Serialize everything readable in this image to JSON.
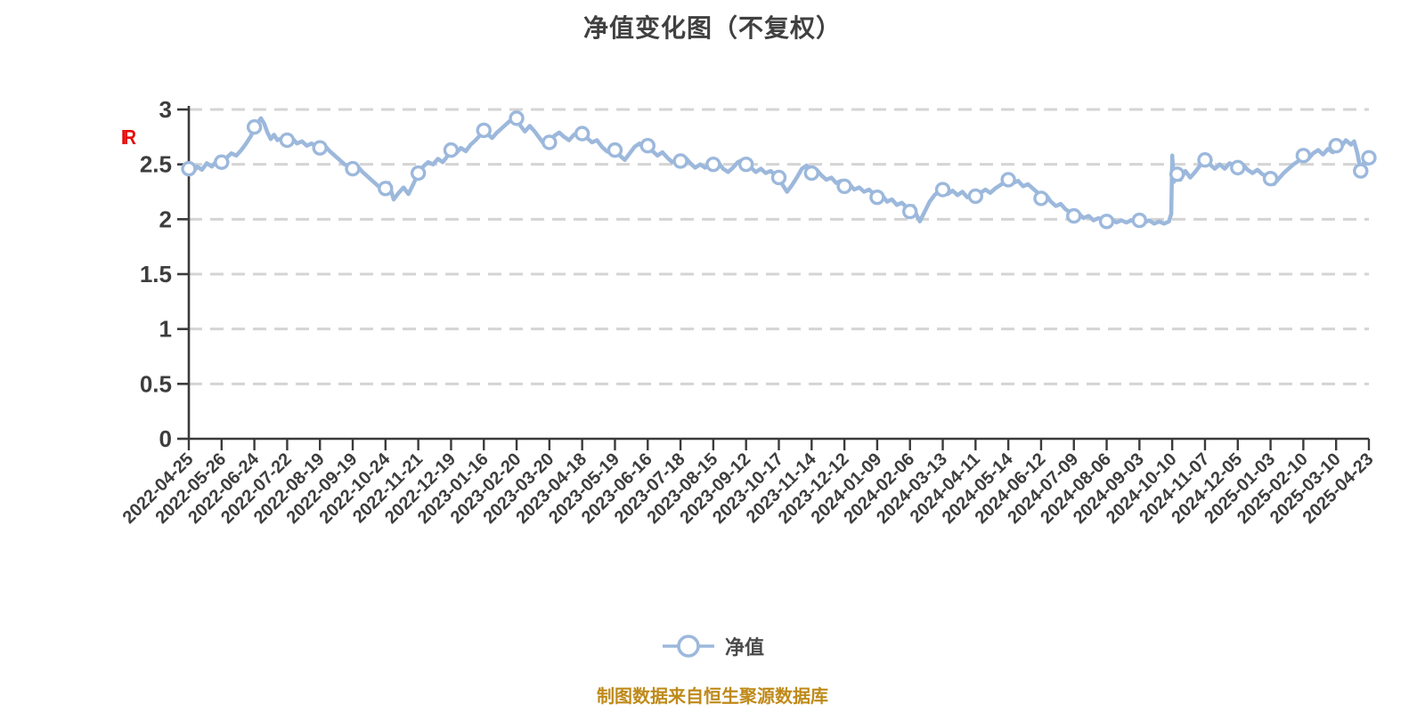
{
  "title": "净值变化图（不复权）",
  "y_axis_unit_label": "IR",
  "legend": {
    "series_label": "净值"
  },
  "footer": {
    "source_text": "制图数据来自恒生聚源数据库"
  },
  "colors": {
    "line": "#9cb8dc",
    "marker_fill": "#ffffff",
    "marker_stroke": "#9cb8dc",
    "grid": "#d4d4d4",
    "axis": "#3a3a3a",
    "title_text": "#404040",
    "tick_text": "#3d3d3d",
    "unit_label_text": "#e60d0d",
    "legend_text": "#4a4a4a",
    "footer_text": "#bf8a1a"
  },
  "chart_data": {
    "type": "line",
    "title": "净值变化图（不复权）",
    "series_name": "净值",
    "ylim": [
      0,
      3
    ],
    "y_ticks": [
      0,
      0.5,
      1,
      1.5,
      2,
      2.5,
      3
    ],
    "grid": "horizontal dashed",
    "legend_position": "bottom center",
    "x_labels": [
      "2022-04-25",
      "2022-05-26",
      "2022-06-24",
      "2022-07-22",
      "2022-08-19",
      "2022-09-19",
      "2022-10-24",
      "2022-11-21",
      "2022-12-19",
      "2023-01-16",
      "2023-02-20",
      "2023-03-20",
      "2023-04-18",
      "2023-05-19",
      "2023-06-16",
      "2023-07-18",
      "2023-08-15",
      "2023-09-12",
      "2023-10-17",
      "2023-11-14",
      "2023-12-12",
      "2024-01-09",
      "2024-02-06",
      "2024-03-13",
      "2024-04-11",
      "2024-05-14",
      "2024-06-12",
      "2024-07-09",
      "2024-08-06",
      "2024-09-03",
      "2024-10-10",
      "2024-11-07",
      "2024-12-05",
      "2025-01-03",
      "2025-02-10",
      "2025-03-10",
      "2025-04-23"
    ],
    "values_at_labels": [
      2.46,
      2.52,
      2.84,
      2.72,
      2.65,
      2.46,
      2.28,
      2.42,
      2.63,
      2.81,
      2.92,
      2.7,
      2.78,
      2.63,
      2.67,
      2.53,
      2.5,
      2.5,
      2.38,
      2.42,
      2.3,
      2.2,
      2.07,
      2.27,
      2.21,
      2.36,
      2.19,
      2.03,
      1.98,
      1.99,
      2.41,
      2.54,
      2.47,
      2.37,
      2.58,
      2.67,
      2.56
    ],
    "marker_points": [
      [
        0,
        2.46
      ],
      [
        1,
        2.52
      ],
      [
        2,
        2.84
      ],
      [
        3,
        2.72
      ],
      [
        4,
        2.65
      ],
      [
        5,
        2.46
      ],
      [
        6,
        2.28
      ],
      [
        7,
        2.42
      ],
      [
        8,
        2.63
      ],
      [
        9,
        2.81
      ],
      [
        10,
        2.92
      ],
      [
        11,
        2.7
      ],
      [
        12,
        2.78
      ],
      [
        13,
        2.63
      ],
      [
        14,
        2.67
      ],
      [
        15,
        2.53
      ],
      [
        16,
        2.5
      ],
      [
        17,
        2.5
      ],
      [
        18,
        2.38
      ],
      [
        19,
        2.42
      ],
      [
        20,
        2.3
      ],
      [
        21,
        2.2
      ],
      [
        22,
        2.07
      ],
      [
        23,
        2.27
      ],
      [
        24,
        2.21
      ],
      [
        25,
        2.36
      ],
      [
        26,
        2.19
      ],
      [
        27,
        2.03
      ],
      [
        28,
        1.98
      ],
      [
        29,
        1.99
      ],
      [
        30.15,
        2.41
      ],
      [
        31,
        2.54
      ],
      [
        32,
        2.47
      ],
      [
        33,
        2.37
      ],
      [
        34,
        2.58
      ],
      [
        35,
        2.67
      ],
      [
        35.75,
        2.44
      ],
      [
        36,
        2.56
      ]
    ],
    "line_points": [
      [
        0,
        2.46
      ],
      [
        0.12,
        2.42
      ],
      [
        0.25,
        2.48
      ],
      [
        0.4,
        2.45
      ],
      [
        0.55,
        2.51
      ],
      [
        0.7,
        2.48
      ],
      [
        0.85,
        2.53
      ],
      [
        1,
        2.52
      ],
      [
        1.15,
        2.56
      ],
      [
        1.3,
        2.6
      ],
      [
        1.45,
        2.58
      ],
      [
        1.6,
        2.63
      ],
      [
        1.75,
        2.69
      ],
      [
        1.9,
        2.76
      ],
      [
        2,
        2.84
      ],
      [
        2.1,
        2.88
      ],
      [
        2.2,
        2.92
      ],
      [
        2.3,
        2.87
      ],
      [
        2.4,
        2.79
      ],
      [
        2.5,
        2.73
      ],
      [
        2.6,
        2.77
      ],
      [
        2.7,
        2.72
      ],
      [
        2.85,
        2.74
      ],
      [
        3,
        2.72
      ],
      [
        3.15,
        2.74
      ],
      [
        3.3,
        2.69
      ],
      [
        3.45,
        2.71
      ],
      [
        3.6,
        2.67
      ],
      [
        3.75,
        2.69
      ],
      [
        3.9,
        2.66
      ],
      [
        4,
        2.65
      ],
      [
        4.15,
        2.67
      ],
      [
        4.3,
        2.62
      ],
      [
        4.45,
        2.58
      ],
      [
        4.6,
        2.54
      ],
      [
        4.75,
        2.5
      ],
      [
        4.9,
        2.48
      ],
      [
        5,
        2.46
      ],
      [
        5.15,
        2.48
      ],
      [
        5.3,
        2.43
      ],
      [
        5.45,
        2.39
      ],
      [
        5.6,
        2.35
      ],
      [
        5.75,
        2.31
      ],
      [
        5.9,
        2.27
      ],
      [
        6,
        2.28
      ],
      [
        6.1,
        2.33
      ],
      [
        6.25,
        2.18
      ],
      [
        6.4,
        2.24
      ],
      [
        6.55,
        2.29
      ],
      [
        6.7,
        2.23
      ],
      [
        6.85,
        2.32
      ],
      [
        7,
        2.42
      ],
      [
        7.15,
        2.48
      ],
      [
        7.3,
        2.52
      ],
      [
        7.45,
        2.5
      ],
      [
        7.6,
        2.55
      ],
      [
        7.75,
        2.52
      ],
      [
        7.9,
        2.58
      ],
      [
        8,
        2.63
      ],
      [
        8.15,
        2.6
      ],
      [
        8.3,
        2.65
      ],
      [
        8.45,
        2.62
      ],
      [
        8.6,
        2.68
      ],
      [
        8.75,
        2.72
      ],
      [
        8.9,
        2.77
      ],
      [
        9,
        2.81
      ],
      [
        9.1,
        2.78
      ],
      [
        9.25,
        2.74
      ],
      [
        9.4,
        2.79
      ],
      [
        9.55,
        2.83
      ],
      [
        9.7,
        2.87
      ],
      [
        9.85,
        2.91
      ],
      [
        10,
        2.92
      ],
      [
        10.1,
        2.86
      ],
      [
        10.25,
        2.8
      ],
      [
        10.4,
        2.85
      ],
      [
        10.55,
        2.8
      ],
      [
        10.7,
        2.74
      ],
      [
        10.85,
        2.68
      ],
      [
        11,
        2.7
      ],
      [
        11.15,
        2.76
      ],
      [
        11.3,
        2.79
      ],
      [
        11.45,
        2.75
      ],
      [
        11.6,
        2.72
      ],
      [
        11.75,
        2.77
      ],
      [
        11.9,
        2.8
      ],
      [
        12,
        2.78
      ],
      [
        12.15,
        2.74
      ],
      [
        12.3,
        2.7
      ],
      [
        12.45,
        2.72
      ],
      [
        12.6,
        2.66
      ],
      [
        12.75,
        2.62
      ],
      [
        12.9,
        2.6
      ],
      [
        13,
        2.63
      ],
      [
        13.15,
        2.58
      ],
      [
        13.3,
        2.54
      ],
      [
        13.45,
        2.6
      ],
      [
        13.6,
        2.66
      ],
      [
        13.75,
        2.69
      ],
      [
        13.9,
        2.64
      ],
      [
        14,
        2.67
      ],
      [
        14.15,
        2.62
      ],
      [
        14.3,
        2.58
      ],
      [
        14.45,
        2.61
      ],
      [
        14.6,
        2.56
      ],
      [
        14.75,
        2.52
      ],
      [
        14.9,
        2.55
      ],
      [
        15,
        2.53
      ],
      [
        15.15,
        2.56
      ],
      [
        15.3,
        2.51
      ],
      [
        15.45,
        2.47
      ],
      [
        15.6,
        2.5
      ],
      [
        15.75,
        2.47
      ],
      [
        15.9,
        2.51
      ],
      [
        16,
        2.5
      ],
      [
        16.15,
        2.52
      ],
      [
        16.3,
        2.46
      ],
      [
        16.45,
        2.43
      ],
      [
        16.6,
        2.47
      ],
      [
        16.75,
        2.52
      ],
      [
        16.9,
        2.54
      ],
      [
        17,
        2.5
      ],
      [
        17.15,
        2.47
      ],
      [
        17.3,
        2.43
      ],
      [
        17.45,
        2.46
      ],
      [
        17.6,
        2.42
      ],
      [
        17.75,
        2.44
      ],
      [
        17.9,
        2.4
      ],
      [
        18,
        2.38
      ],
      [
        18.1,
        2.32
      ],
      [
        18.25,
        2.25
      ],
      [
        18.4,
        2.31
      ],
      [
        18.55,
        2.38
      ],
      [
        18.7,
        2.46
      ],
      [
        18.85,
        2.49
      ],
      [
        19,
        2.42
      ],
      [
        19.15,
        2.45
      ],
      [
        19.3,
        2.4
      ],
      [
        19.45,
        2.36
      ],
      [
        19.6,
        2.38
      ],
      [
        19.75,
        2.33
      ],
      [
        19.9,
        2.35
      ],
      [
        20,
        2.3
      ],
      [
        20.15,
        2.32
      ],
      [
        20.3,
        2.27
      ],
      [
        20.45,
        2.29
      ],
      [
        20.6,
        2.25
      ],
      [
        20.75,
        2.27
      ],
      [
        20.9,
        2.23
      ],
      [
        21,
        2.2
      ],
      [
        21.15,
        2.22
      ],
      [
        21.3,
        2.16
      ],
      [
        21.45,
        2.18
      ],
      [
        21.6,
        2.13
      ],
      [
        21.75,
        2.15
      ],
      [
        21.9,
        2.11
      ],
      [
        22,
        2.07
      ],
      [
        22.1,
        2.12
      ],
      [
        22.2,
        2.04
      ],
      [
        22.3,
        1.98
      ],
      [
        22.45,
        2.07
      ],
      [
        22.6,
        2.16
      ],
      [
        22.75,
        2.22
      ],
      [
        22.9,
        2.26
      ],
      [
        23,
        2.27
      ],
      [
        23.15,
        2.23
      ],
      [
        23.3,
        2.26
      ],
      [
        23.45,
        2.22
      ],
      [
        23.6,
        2.25
      ],
      [
        23.75,
        2.2
      ],
      [
        23.9,
        2.23
      ],
      [
        24,
        2.21
      ],
      [
        24.15,
        2.24
      ],
      [
        24.3,
        2.27
      ],
      [
        24.45,
        2.24
      ],
      [
        24.6,
        2.28
      ],
      [
        24.75,
        2.31
      ],
      [
        24.9,
        2.34
      ],
      [
        25,
        2.36
      ],
      [
        25.15,
        2.33
      ],
      [
        25.3,
        2.35
      ],
      [
        25.45,
        2.3
      ],
      [
        25.6,
        2.32
      ],
      [
        25.75,
        2.28
      ],
      [
        25.9,
        2.24
      ],
      [
        26,
        2.19
      ],
      [
        26.15,
        2.22
      ],
      [
        26.3,
        2.16
      ],
      [
        26.45,
        2.12
      ],
      [
        26.6,
        2.14
      ],
      [
        26.75,
        2.09
      ],
      [
        26.9,
        2.06
      ],
      [
        27,
        2.03
      ],
      [
        27.15,
        2.05
      ],
      [
        27.3,
        2.01
      ],
      [
        27.45,
        2.03
      ],
      [
        27.6,
        1.99
      ],
      [
        27.75,
        2.01
      ],
      [
        27.9,
        1.99
      ],
      [
        28,
        1.98
      ],
      [
        28.15,
        2.0
      ],
      [
        28.3,
        1.97
      ],
      [
        28.45,
        1.99
      ],
      [
        28.6,
        1.97
      ],
      [
        28.75,
        1.99
      ],
      [
        28.9,
        1.97
      ],
      [
        29,
        1.99
      ],
      [
        29.15,
        1.97
      ],
      [
        29.3,
        1.99
      ],
      [
        29.45,
        1.96
      ],
      [
        29.6,
        1.98
      ],
      [
        29.75,
        1.96
      ],
      [
        29.9,
        1.98
      ],
      [
        29.97,
        2.05
      ],
      [
        30,
        2.58
      ],
      [
        30.05,
        2.34
      ],
      [
        30.15,
        2.41
      ],
      [
        30.25,
        2.36
      ],
      [
        30.4,
        2.44
      ],
      [
        30.55,
        2.38
      ],
      [
        30.7,
        2.43
      ],
      [
        30.85,
        2.49
      ],
      [
        31,
        2.54
      ],
      [
        31.15,
        2.5
      ],
      [
        31.3,
        2.46
      ],
      [
        31.45,
        2.5
      ],
      [
        31.6,
        2.46
      ],
      [
        31.75,
        2.51
      ],
      [
        31.9,
        2.49
      ],
      [
        32,
        2.47
      ],
      [
        32.15,
        2.5
      ],
      [
        32.3,
        2.45
      ],
      [
        32.45,
        2.42
      ],
      [
        32.6,
        2.45
      ],
      [
        32.75,
        2.41
      ],
      [
        32.9,
        2.39
      ],
      [
        33,
        2.37
      ],
      [
        33.1,
        2.32
      ],
      [
        33.25,
        2.37
      ],
      [
        33.4,
        2.42
      ],
      [
        33.55,
        2.46
      ],
      [
        33.7,
        2.5
      ],
      [
        33.85,
        2.53
      ],
      [
        34,
        2.58
      ],
      [
        34.15,
        2.55
      ],
      [
        34.3,
        2.6
      ],
      [
        34.45,
        2.63
      ],
      [
        34.6,
        2.59
      ],
      [
        34.75,
        2.64
      ],
      [
        34.9,
        2.61
      ],
      [
        35,
        2.67
      ],
      [
        35.1,
        2.64
      ],
      [
        35.2,
        2.68
      ],
      [
        35.3,
        2.72
      ],
      [
        35.45,
        2.68
      ],
      [
        35.55,
        2.71
      ],
      [
        35.65,
        2.6
      ],
      [
        35.75,
        2.44
      ],
      [
        35.85,
        2.52
      ],
      [
        35.95,
        2.55
      ],
      [
        36,
        2.56
      ]
    ]
  }
}
